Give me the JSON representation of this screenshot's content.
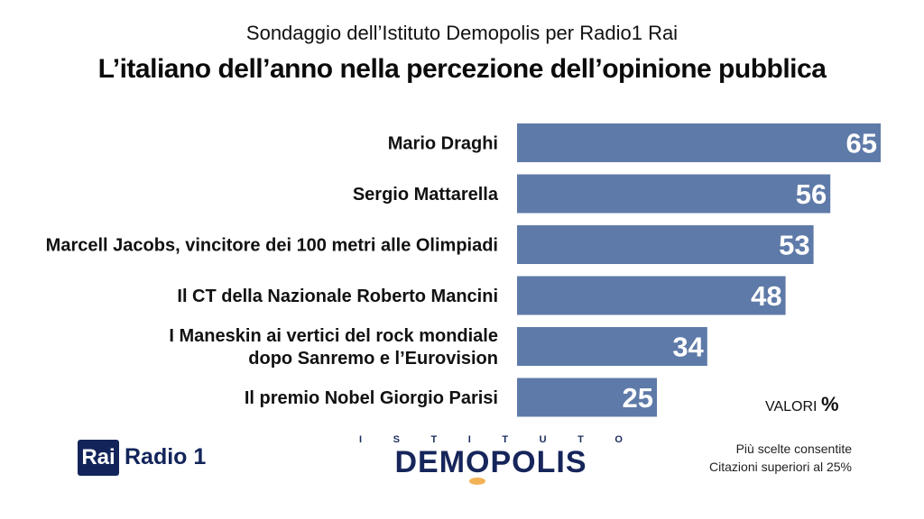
{
  "header": {
    "subtitle": "Sondaggio dell’Istituto Demopolis per Radio1 Rai",
    "title": "L’italiano dell’anno nella percezione dell’opinione pubblica"
  },
  "chart_data": {
    "type": "bar",
    "orientation": "horizontal",
    "categories": [
      [
        "Mario Draghi"
      ],
      [
        "Sergio Mattarella"
      ],
      [
        "Marcell Jacobs, vincitore dei 100 metri alle Olimpiadi"
      ],
      [
        "Il CT della Nazionale Roberto Mancini"
      ],
      [
        "I Maneskin ai vertici del rock mondiale",
        "dopo Sanremo e l’Eurovision"
      ],
      [
        "Il premio Nobel Giorgio Parisi"
      ]
    ],
    "values": [
      65,
      56,
      53,
      48,
      34,
      25
    ],
    "xlim": [
      0,
      65
    ],
    "grid": false,
    "legend": "none",
    "data_labels": "inside-end",
    "bar_color": "#5e7aa8",
    "label_color": "#ffffff"
  },
  "units": {
    "label": "VALORI",
    "symbol": "%"
  },
  "footer": {
    "rai_logo_text": "Rai",
    "radio_logo_text": "Radio 1",
    "demopolis_top_letters": [
      "I",
      "S",
      "T",
      "I",
      "T",
      "U",
      "T",
      "O"
    ],
    "demopolis_name": "DEMOPOLIS",
    "note_line1": "Più scelte consentite",
    "note_line2": "Citazioni superiori al 25%"
  }
}
